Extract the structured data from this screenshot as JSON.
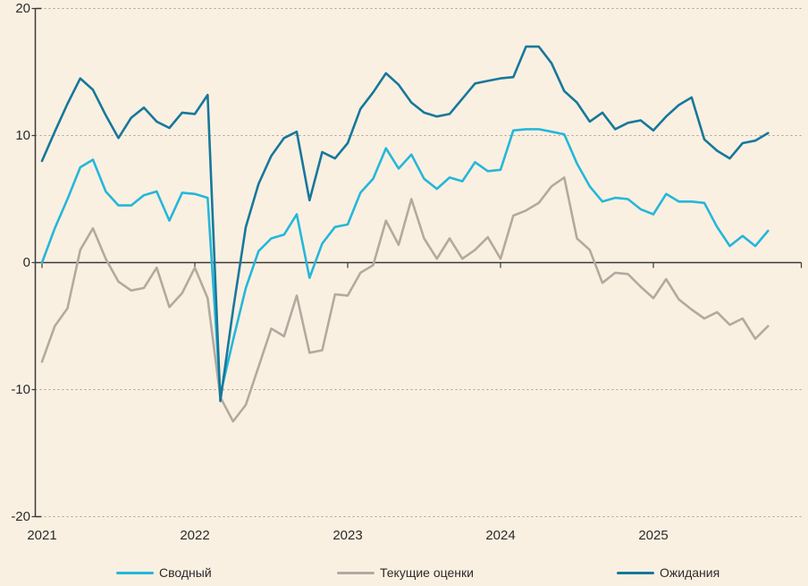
{
  "chart_data": {
    "type": "line",
    "title": "",
    "xlabel": "",
    "ylabel": "",
    "x_start": "2021-01",
    "x_frequency": "monthly",
    "x_year_ticks": [
      "2021",
      "2022",
      "2023",
      "2024",
      "2025"
    ],
    "y_tick_labels": [
      "20",
      "10",
      "0",
      "-10",
      "-20"
    ],
    "y_ticks": [
      20,
      10,
      0,
      -10,
      -20
    ],
    "ylim": [
      -20,
      20
    ],
    "grid": "horizontal-dotted",
    "zero_line": true,
    "legend_position": "bottom",
    "background_color": "#FAF0E2",
    "axis_color": "#3a3a3a",
    "grid_color": "#A99F92",
    "series": [
      {
        "name": "Сводный",
        "color": "#25B7D9",
        "values": [
          0.0,
          2.7,
          5.0,
          7.5,
          8.1,
          5.6,
          4.5,
          4.5,
          5.3,
          5.6,
          3.3,
          5.5,
          5.4,
          5.1,
          -10.4,
          -6.1,
          -2.0,
          0.9,
          1.9,
          2.2,
          3.8,
          -1.2,
          1.5,
          2.8,
          3.0,
          5.5,
          6.6,
          9.0,
          7.4,
          8.5,
          6.6,
          5.8,
          6.7,
          6.4,
          7.9,
          7.2,
          7.3,
          10.4,
          10.5,
          10.5,
          10.3,
          10.1,
          7.8,
          6.0,
          4.8,
          5.1,
          5.0,
          4.2,
          3.8,
          5.4,
          4.8,
          4.8,
          4.7,
          2.8,
          1.3,
          2.1,
          1.3,
          2.5
        ]
      },
      {
        "name": "Текущие оценки",
        "color": "#B2AAA0",
        "values": [
          -7.8,
          -5.0,
          -3.6,
          1.0,
          2.7,
          0.3,
          -1.5,
          -2.2,
          -2.0,
          -0.4,
          -3.5,
          -2.4,
          -0.4,
          -2.8,
          -10.6,
          -12.5,
          -11.2,
          -8.2,
          -5.2,
          -5.8,
          -2.6,
          -7.1,
          -6.9,
          -2.5,
          -2.6,
          -0.8,
          -0.2,
          3.3,
          1.4,
          5.0,
          1.9,
          0.3,
          1.9,
          0.3,
          1.0,
          2.0,
          0.3,
          3.7,
          4.1,
          4.7,
          6.0,
          6.7,
          1.9,
          1.0,
          -1.6,
          -0.8,
          -0.9,
          -1.9,
          -2.8,
          -1.3,
          -2.9,
          -3.7,
          -4.4,
          -3.9,
          -4.9,
          -4.4,
          -6.0,
          -5.0
        ]
      },
      {
        "name": "Ожидания",
        "color": "#17789B",
        "values": [
          8.0,
          10.3,
          12.5,
          14.5,
          13.6,
          11.6,
          9.8,
          11.4,
          12.2,
          11.1,
          10.6,
          11.8,
          11.7,
          13.2,
          -10.9,
          -3.7,
          2.8,
          6.2,
          8.4,
          9.8,
          10.3,
          4.9,
          8.7,
          8.2,
          9.4,
          12.1,
          13.4,
          14.9,
          14.0,
          12.6,
          11.8,
          11.5,
          11.7,
          12.9,
          14.1,
          14.3,
          14.5,
          14.6,
          17.0,
          17.0,
          15.7,
          13.5,
          12.6,
          11.1,
          11.8,
          10.5,
          11.0,
          11.2,
          10.4,
          11.5,
          12.4,
          13.0,
          9.7,
          8.8,
          8.2,
          9.4,
          9.6,
          10.2
        ]
      }
    ]
  },
  "legend": {
    "items": [
      {
        "label": "Сводный"
      },
      {
        "label": "Текущие оценки"
      },
      {
        "label": "Ожидания"
      }
    ]
  }
}
